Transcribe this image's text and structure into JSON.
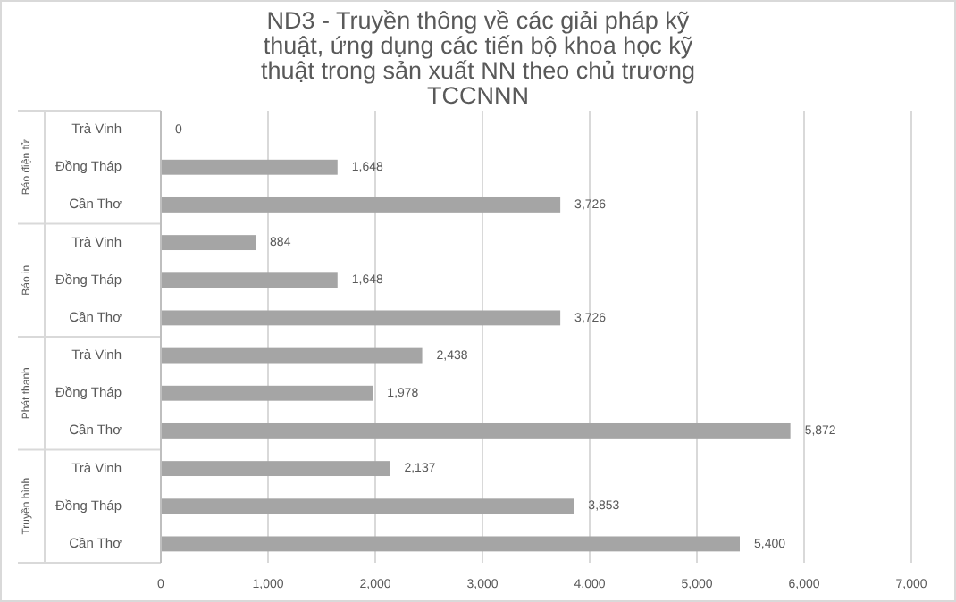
{
  "chart_data": {
    "type": "bar",
    "orientation": "horizontal",
    "title": "ND3 - Truyền thông về các giải pháp kỹ thuật, ứng dụng các tiến bộ khoa học kỹ thuật trong sản xuất NN theo chủ trương TCCNNN",
    "categories": [
      "Trà Vinh",
      "Đồng Tháp",
      "Cần Thơ",
      "Trà Vinh",
      "Đồng Tháp",
      "Cần Thơ",
      "Trà Vinh",
      "Đồng Tháp",
      "Cần Thơ",
      "Trà Vinh",
      "Đồng Tháp",
      "Cần Thơ"
    ],
    "values": [
      0,
      1648,
      3726,
      884,
      1648,
      3726,
      2438,
      1978,
      5872,
      2137,
      3853,
      5400
    ],
    "color": "#a5a5a5",
    "value_labels": [
      "0",
      "1,648",
      "3,726",
      "884",
      "1,648",
      "3,726",
      "2,438",
      "1,978",
      "5,872",
      "2,137",
      "3,853",
      "5,400"
    ],
    "annotations": [
      "Báo điện tử",
      "Báo in",
      "Phát thanh",
      "Truyền hình"
    ],
    "xlim": [
      0,
      7000
    ],
    "xticks": [
      {
        "value": 0,
        "label": "0"
      },
      {
        "value": 1000,
        "label": "1,000"
      },
      {
        "value": 2000,
        "label": "2,000"
      },
      {
        "value": 3000,
        "label": "3,000"
      },
      {
        "value": 4000,
        "label": "4,000"
      },
      {
        "value": 5000,
        "label": "5,000"
      },
      {
        "value": 6000,
        "label": "6,000"
      },
      {
        "value": 7000,
        "label": "7,000"
      }
    ],
    "grid": "x"
  }
}
